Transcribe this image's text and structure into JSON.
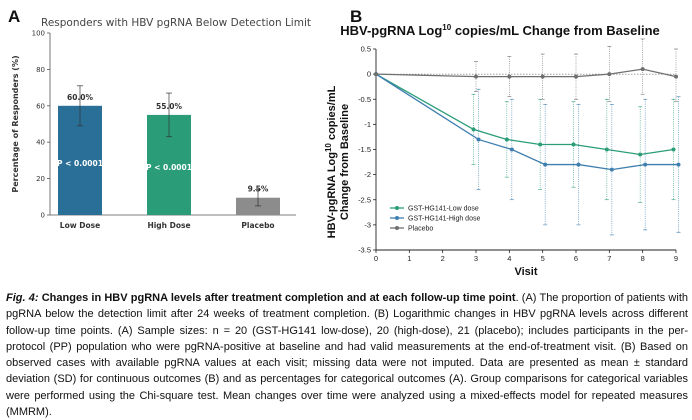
{
  "figure": {
    "panel_a_letter": "A",
    "panel_b_letter": "B",
    "caption_label": "Fig. 4:",
    "caption_title": "Changes in HBV pgRNA levels after treatment completion and at each follow-up time point",
    "caption_body": ". (A) The proportion of patients with pgRNA below the detection limit after 24 weeks of treatment completion. (B) Logarithmic changes in HBV pgRNA levels across different follow-up time points. (A) Sample sizes: n = 20 (GST-HG141 low-dose), 20 (high-dose), 21 (placebo); includes participants in the per-protocol (PP) population who were pgRNA-positive at baseline and had valid measurements at the end-of-treatment visit. (B) Based on observed cases with available pgRNA values at each visit; missing data were not imputed. Data are presented as mean ± standard deviation (SD) for continuous outcomes (B) and as percentages for categorical outcomes (A). Group comparisons for categorical variables were performed using the Chi-square test. Mean changes over time were analyzed using a mixed-effects model for repeated measures (MMRM)."
  },
  "chart_data": [
    {
      "type": "bar",
      "title": "Responders with HBV pgRNA Below Detection Limit",
      "ylabel": "Percentage of Responders (%)",
      "xlabel": "",
      "ylim": [
        0,
        100
      ],
      "yticks": [
        0,
        20,
        40,
        60,
        80,
        100
      ],
      "categories": [
        "Low Dose",
        "High Dose",
        "Placebo"
      ],
      "values": [
        60.0,
        55.0,
        9.5
      ],
      "value_labels": [
        "60.0%",
        "55.0%",
        "9.5%"
      ],
      "error_low": [
        49,
        43,
        5
      ],
      "error_high": [
        71,
        67,
        14
      ],
      "annotations": [
        "P < 0.0001",
        "P < 0.0001",
        ""
      ],
      "colors": [
        "#2a6f97",
        "#2a9d78",
        "#8c8c8c"
      ],
      "grid": false
    },
    {
      "type": "line",
      "title_prefix": "HBV-pgRNA Log",
      "title_sup": "10",
      "title_suffix": " copies/mL Change from Baseline",
      "ylabel_line1_prefix": "HBV-pgRNA Log",
      "ylabel_line1_sup": "10",
      "ylabel_line1_suffix": " copies/mL",
      "ylabel_line2": "Change from Baseline",
      "xlabel": "Visit",
      "x": [
        0,
        3,
        4,
        5,
        6,
        7,
        8,
        9
      ],
      "xticks": [
        0,
        1,
        2,
        3,
        4,
        5,
        6,
        7,
        8,
        9
      ],
      "ylim": [
        -3.5,
        0.5
      ],
      "yticks": [
        "0.5",
        "0",
        "-0.5",
        "-1",
        "-1.5",
        "-2",
        "-2.5",
        "-3",
        "-3.5"
      ],
      "legend_position": "lower-left",
      "grid": false,
      "series": [
        {
          "name": "GST-HG141-Low dose",
          "color": "#2a9d78",
          "values": [
            0,
            -1.1,
            -1.3,
            -1.4,
            -1.4,
            -1.5,
            -1.6,
            -1.5
          ],
          "err_low": [
            0,
            -1.8,
            -2.05,
            -2.3,
            -2.25,
            -2.5,
            -2.55,
            -2.5
          ],
          "err_high": [
            0,
            -0.4,
            -0.55,
            -0.5,
            -0.55,
            -0.5,
            -0.65,
            -0.5
          ]
        },
        {
          "name": "GST-HG141-High dose",
          "color": "#3f7fb0",
          "values": [
            0,
            -1.3,
            -1.5,
            -1.8,
            -1.8,
            -1.9,
            -1.8,
            -1.8
          ],
          "err_low": [
            0,
            -2.3,
            -2.5,
            -3.0,
            -3.0,
            -3.2,
            -3.1,
            -3.15
          ],
          "err_high": [
            0,
            -0.3,
            -0.5,
            -0.6,
            -0.6,
            -0.6,
            -0.5,
            -0.45
          ]
        },
        {
          "name": "Placebo",
          "color": "#6f6f6f",
          "values": [
            0,
            -0.05,
            -0.05,
            -0.05,
            -0.05,
            0,
            0.1,
            -0.05
          ],
          "err_low": [
            0,
            -0.35,
            -0.45,
            -0.5,
            -0.5,
            -0.55,
            -0.4,
            -0.55
          ],
          "err_high": [
            0,
            0.25,
            0.35,
            0.4,
            0.4,
            0.55,
            0.7,
            0.5
          ]
        }
      ]
    }
  ]
}
